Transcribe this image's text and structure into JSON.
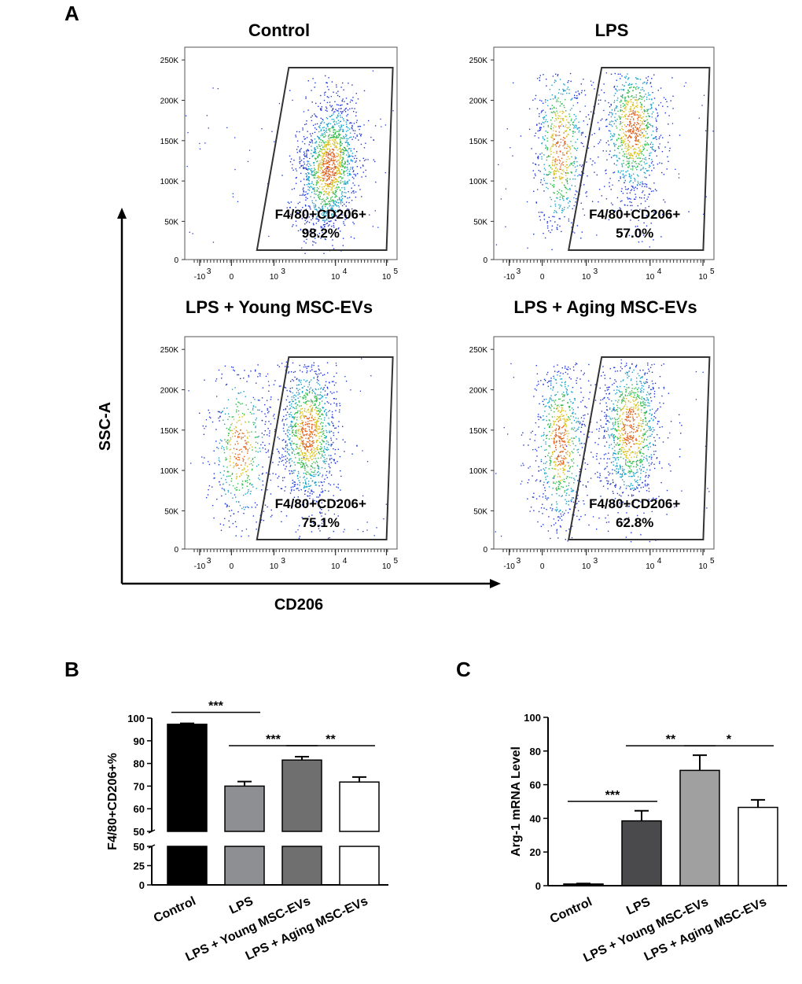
{
  "panel_letters": {
    "a": "A",
    "b": "B",
    "c": "C"
  },
  "flow": {
    "x_axis_title": "CD206",
    "y_axis_title": "SSC-A",
    "y_ticks": [
      "250K",
      "200K",
      "150K",
      "100K",
      "50K",
      "0"
    ],
    "x_ticks": [
      "-10",
      "0",
      "10",
      "10",
      "10"
    ],
    "x_tick_exponents": [
      "3",
      "",
      "3",
      "4",
      "5"
    ],
    "plots": [
      {
        "title": "Control",
        "gate_label": "F4/80+CD206+",
        "percent": "98.2%"
      },
      {
        "title": "LPS",
        "gate_label": "F4/80+CD206+",
        "percent": "57.0%"
      },
      {
        "title": "LPS + Young MSC-EVs",
        "gate_label": "F4/80+CD206+",
        "percent": "75.1%"
      },
      {
        "title": "LPS + Aging MSC-EVs",
        "gate_label": "F4/80+CD206+",
        "percent": "62.8%"
      }
    ]
  },
  "chart_data": [
    {
      "type": "bar",
      "panel": "B",
      "ylabel": "F4/80+CD206+%",
      "categories": [
        "Control",
        "LPS",
        "LPS + Young MSC-EVs",
        "LPS + Aging MSC-EVs"
      ],
      "values": [
        97.3,
        70,
        81.5,
        71.8
      ],
      "errors": [
        0.4,
        2.0,
        1.5,
        2.2
      ],
      "bar_colors": [
        "#000000",
        "#8e8f93",
        "#6f6f6f",
        "#ffffff"
      ],
      "y_axis_break": [
        50,
        50
      ],
      "y_ticks_lower": [
        "0",
        "25",
        "50"
      ],
      "y_ticks_upper": [
        "50",
        "60",
        "70",
        "80",
        "90",
        "100"
      ],
      "ylim": [
        0,
        100
      ],
      "significance": [
        {
          "from": 0,
          "to": 1,
          "label": "***"
        },
        {
          "from": 1,
          "to": 2,
          "label": "***"
        },
        {
          "from": 2,
          "to": 3,
          "label": "**"
        }
      ]
    },
    {
      "type": "bar",
      "panel": "C",
      "ylabel": "Arg-1 mRNA Level",
      "categories": [
        "Control",
        "LPS",
        "LPS + Young MSC-EVs",
        "LPS + Aging MSC-EVs"
      ],
      "values": [
        1,
        38.5,
        68.5,
        46.5
      ],
      "errors": [
        0.3,
        6.0,
        9.0,
        4.5
      ],
      "bar_colors": [
        "#000000",
        "#4a4a4c",
        "#a0a0a0",
        "#ffffff"
      ],
      "y_ticks": [
        "0",
        "20",
        "40",
        "60",
        "80",
        "100"
      ],
      "ylim": [
        0,
        100
      ],
      "significance": [
        {
          "from": 0,
          "to": 1,
          "label": "***"
        },
        {
          "from": 1,
          "to": 2,
          "label": "**"
        },
        {
          "from": 2,
          "to": 3,
          "label": "*"
        }
      ]
    }
  ]
}
